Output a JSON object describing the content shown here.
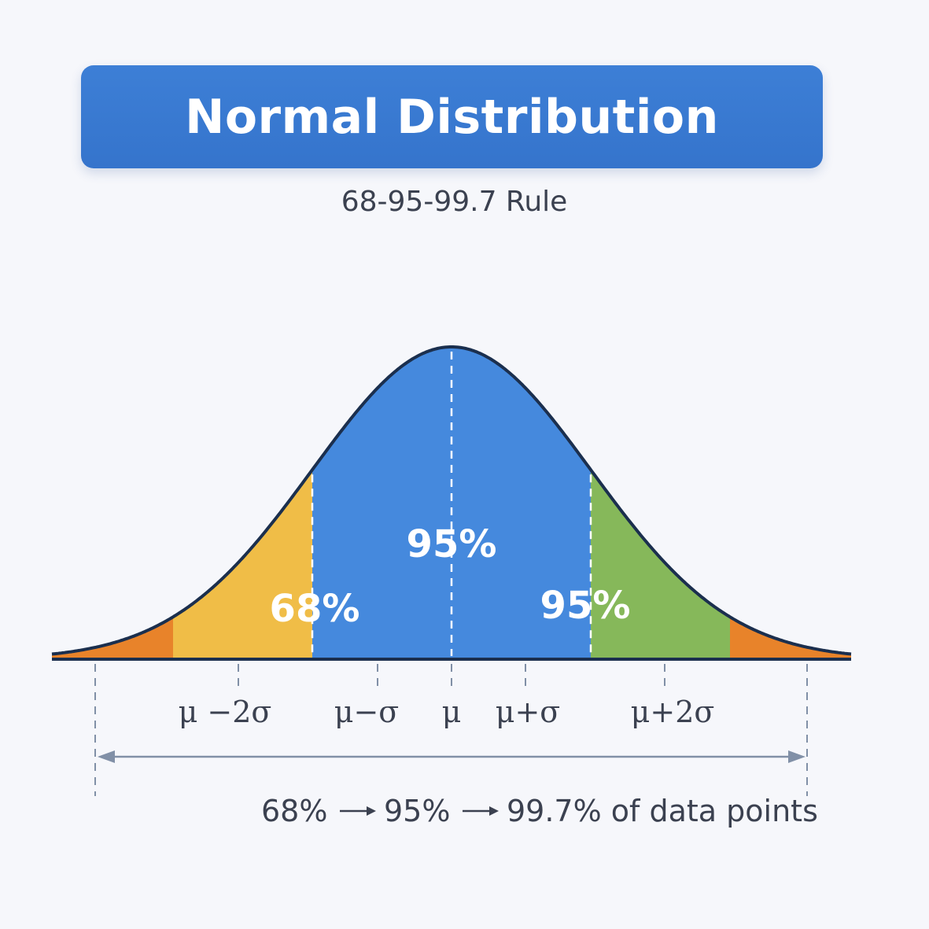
{
  "title": "Normal Distribution",
  "subtitle": "68-95-99.7 Rule",
  "chart_data": {
    "type": "area",
    "x_range": [
      -3,
      3
    ],
    "regions": [
      {
        "label": "",
        "from": -3,
        "to": -2,
        "color": "#e8832a"
      },
      {
        "label": "68%",
        "from": -2,
        "to": -1,
        "color": "#f0bd47"
      },
      {
        "label": "95%",
        "from": -1,
        "to": 1,
        "color": "#4589dd"
      },
      {
        "label": "95%",
        "from": 1,
        "to": 2,
        "color": "#86b85a"
      },
      {
        "label": "",
        "from": 2,
        "to": 3,
        "color": "#e8832a"
      }
    ],
    "ticks": [
      {
        "x": -2,
        "label": "μ −2σ"
      },
      {
        "x": -1,
        "label": "μ−σ"
      },
      {
        "x": 0,
        "label": "μ"
      },
      {
        "x": 1,
        "label": "μ+σ"
      },
      {
        "x": 2,
        "label": "μ+2σ"
      }
    ],
    "caption": {
      "part1": "68%",
      "part2": "95%",
      "part3": "99.7% of data points"
    },
    "curve_color": "#1b2f4e",
    "grid": false
  }
}
